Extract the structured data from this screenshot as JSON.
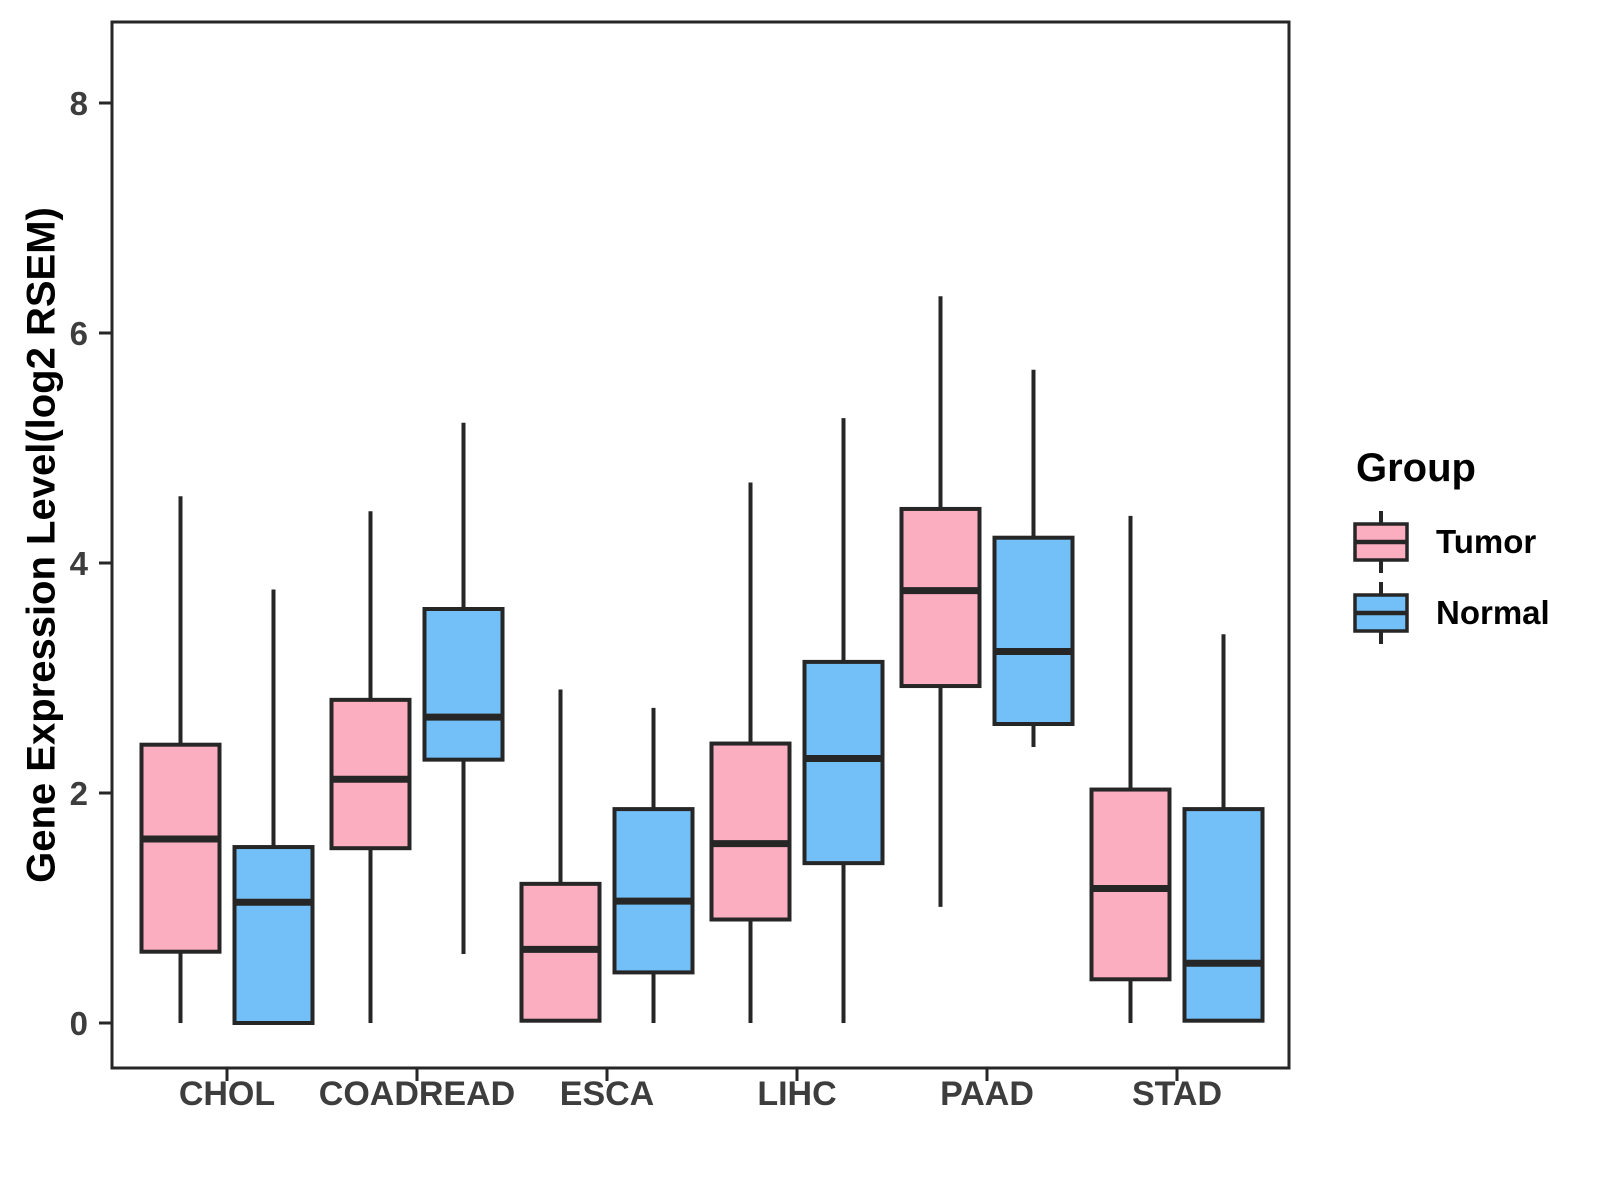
{
  "y_axis": {
    "title": "Gene Expression Level(log2 RSEM)",
    "ticks": [
      "0",
      "2",
      "4",
      "6",
      "8"
    ]
  },
  "x_axis": {
    "categories": [
      "CHOL",
      "COADREAD",
      "ESCA",
      "LIHC",
      "PAAD",
      "STAD"
    ]
  },
  "legend": {
    "title": "Group",
    "entries": [
      {
        "label": "Tumor",
        "color": "#FCAEC1"
      },
      {
        "label": "Normal",
        "color": "#73BFF7"
      }
    ]
  },
  "colors": {
    "tumor_fill": "#FCAEC1",
    "normal_fill": "#73BFF7",
    "box_stroke": "#262626",
    "axis_text": "#3d3d3d",
    "background": "#ffffff"
  },
  "chart_data": {
    "type": "boxplot",
    "title": "",
    "xlabel": "",
    "ylabel": "Gene Expression Level(log2 RSEM)",
    "ylim": [
      -0.4,
      8.7
    ],
    "yticks": [
      0,
      2,
      4,
      6,
      8
    ],
    "grid": false,
    "legend_position": "right",
    "categories": [
      "CHOL",
      "COADREAD",
      "ESCA",
      "LIHC",
      "PAAD",
      "STAD"
    ],
    "series": [
      {
        "name": "Tumor",
        "color": "#FCAEC1",
        "boxes": [
          {
            "category": "CHOL",
            "min": 0.0,
            "q1": 0.62,
            "median": 1.6,
            "q3": 2.42,
            "max": 4.58
          },
          {
            "category": "COADREAD",
            "min": 0.0,
            "q1": 1.52,
            "median": 2.12,
            "q3": 2.81,
            "max": 4.45
          },
          {
            "category": "ESCA",
            "min": 0.02,
            "q1": 0.02,
            "median": 0.64,
            "q3": 1.21,
            "max": 2.9
          },
          {
            "category": "LIHC",
            "min": 0.0,
            "q1": 0.9,
            "median": 1.56,
            "q3": 2.43,
            "max": 4.7
          },
          {
            "category": "PAAD",
            "min": 1.01,
            "q1": 2.93,
            "median": 3.76,
            "q3": 4.47,
            "max": 6.32
          },
          {
            "category": "STAD",
            "min": 0.0,
            "q1": 0.38,
            "median": 1.17,
            "q3": 2.03,
            "max": 4.41
          }
        ]
      },
      {
        "name": "Normal",
        "color": "#73BFF7",
        "boxes": [
          {
            "category": "CHOL",
            "min": 0.0,
            "q1": 0.0,
            "median": 1.05,
            "q3": 1.53,
            "max": 3.77
          },
          {
            "category": "COADREAD",
            "min": 0.6,
            "q1": 2.29,
            "median": 2.66,
            "q3": 3.6,
            "max": 5.22
          },
          {
            "category": "ESCA",
            "min": 0.0,
            "q1": 0.44,
            "median": 1.06,
            "q3": 1.86,
            "max": 2.74
          },
          {
            "category": "LIHC",
            "min": 0.0,
            "q1": 1.39,
            "median": 2.3,
            "q3": 3.14,
            "max": 5.26
          },
          {
            "category": "PAAD",
            "min": 2.4,
            "q1": 2.6,
            "median": 3.23,
            "q3": 4.22,
            "max": 5.68
          },
          {
            "category": "STAD",
            "min": 0.02,
            "q1": 0.02,
            "median": 0.52,
            "q3": 1.86,
            "max": 3.38
          }
        ]
      }
    ]
  }
}
